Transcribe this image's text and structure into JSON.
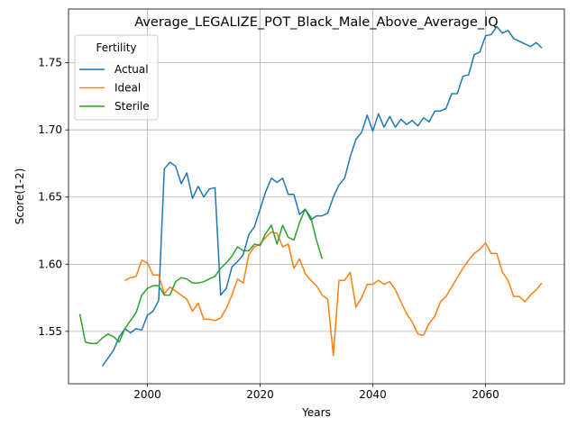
{
  "chart_data": {
    "type": "line",
    "title": "Average_LEGALIZE_POT_Black_Male_Above_Average_IQ",
    "xlabel": "Years",
    "ylabel": "Score(1-2)",
    "xlim": [
      1986,
      2074
    ],
    "ylim": [
      1.511,
      1.79
    ],
    "xticks": [
      2000,
      2020,
      2040,
      2060
    ],
    "yticks": [
      1.55,
      1.6,
      1.65,
      1.7,
      1.75
    ],
    "ytick_labels": [
      "1.55",
      "1.60",
      "1.65",
      "1.70",
      "1.75"
    ],
    "grid": true,
    "legend": {
      "title": "Fertility",
      "position": "top-left"
    },
    "series": [
      {
        "name": "Actual",
        "color": "#1f77b4",
        "x": [
          1992,
          1993,
          1994,
          1995,
          1996,
          1997,
          1998,
          1999,
          2000,
          2001,
          2002,
          2003,
          2004,
          2005,
          2006,
          2007,
          2008,
          2009,
          2010,
          2011,
          2012,
          2013,
          2014,
          2015,
          2016,
          2017,
          2018,
          2019,
          2020,
          2021,
          2022,
          2023,
          2024,
          2025,
          2026,
          2027,
          2028,
          2029,
          2030,
          2031,
          2032,
          2033,
          2034,
          2035,
          2036,
          2037,
          2038,
          2039,
          2040,
          2041,
          2042,
          2043,
          2044,
          2045,
          2046,
          2047,
          2048,
          2049,
          2050,
          2051,
          2052,
          2053,
          2054,
          2055,
          2056,
          2057,
          2058,
          2059,
          2060,
          2061,
          2062,
          2063,
          2064,
          2065,
          2066,
          2067,
          2068,
          2069,
          2070
        ],
        "y": [
          1.524,
          1.53,
          1.536,
          1.546,
          1.552,
          1.549,
          1.552,
          1.551,
          1.562,
          1.565,
          1.573,
          1.671,
          1.676,
          1.673,
          1.66,
          1.668,
          1.649,
          1.658,
          1.65,
          1.656,
          1.657,
          1.577,
          1.582,
          1.598,
          1.602,
          1.607,
          1.622,
          1.628,
          1.641,
          1.654,
          1.664,
          1.661,
          1.664,
          1.652,
          1.652,
          1.637,
          1.641,
          1.633,
          1.636,
          1.636,
          1.638,
          1.65,
          1.659,
          1.664,
          1.68,
          1.693,
          1.698,
          1.711,
          1.699,
          1.712,
          1.702,
          1.71,
          1.702,
          1.708,
          1.704,
          1.707,
          1.703,
          1.709,
          1.706,
          1.714,
          1.714,
          1.716,
          1.727,
          1.727,
          1.74,
          1.741,
          1.756,
          1.758,
          1.77,
          1.771,
          1.777,
          1.772,
          1.774,
          1.768,
          1.766,
          1.764,
          1.762,
          1.765,
          1.761
        ]
      },
      {
        "name": "Ideal",
        "color": "#ff7f0e",
        "x": [
          1996,
          1997,
          1998,
          1999,
          2000,
          2001,
          2002,
          2003,
          2004,
          2005,
          2006,
          2007,
          2008,
          2009,
          2010,
          2011,
          2012,
          2013,
          2014,
          2015,
          2016,
          2017,
          2018,
          2019,
          2020,
          2021,
          2022,
          2023,
          2024,
          2025,
          2026,
          2027,
          2028,
          2029,
          2030,
          2031,
          2032,
          2033,
          2034,
          2035,
          2036,
          2037,
          2038,
          2039,
          2040,
          2041,
          2042,
          2043,
          2044,
          2045,
          2046,
          2047,
          2048,
          2049,
          2050,
          2051,
          2052,
          2053,
          2054,
          2055,
          2056,
          2057,
          2058,
          2059,
          2060,
          2061,
          2062,
          2063,
          2064,
          2065,
          2066,
          2067,
          2068,
          2069,
          2070
        ],
        "y": [
          1.588,
          1.59,
          1.591,
          1.603,
          1.601,
          1.592,
          1.592,
          1.578,
          1.583,
          1.58,
          1.577,
          1.574,
          1.565,
          1.571,
          1.559,
          1.559,
          1.558,
          1.56,
          1.567,
          1.577,
          1.589,
          1.586,
          1.607,
          1.613,
          1.615,
          1.62,
          1.624,
          1.623,
          1.613,
          1.615,
          1.597,
          1.604,
          1.593,
          1.588,
          1.584,
          1.577,
          1.574,
          1.532,
          1.588,
          1.588,
          1.594,
          1.568,
          1.575,
          1.585,
          1.585,
          1.588,
          1.585,
          1.587,
          1.581,
          1.572,
          1.563,
          1.557,
          1.548,
          1.547,
          1.556,
          1.561,
          1.572,
          1.576,
          1.583,
          1.59,
          1.597,
          1.603,
          1.608,
          1.611,
          1.616,
          1.608,
          1.608,
          1.594,
          1.588,
          1.576,
          1.576,
          1.572,
          1.577,
          1.581,
          1.586
        ]
      },
      {
        "name": "Sterile",
        "color": "#2ca02c",
        "x": [
          1988,
          1989,
          1990,
          1991,
          1992,
          1993,
          1994,
          1995,
          1996,
          1997,
          1998,
          1999,
          2000,
          2001,
          2002,
          2003,
          2004,
          2005,
          2006,
          2007,
          2008,
          2009,
          2010,
          2011,
          2012,
          2013,
          2014,
          2015,
          2016,
          2017,
          2018,
          2019,
          2020,
          2021,
          2022,
          2023,
          2024,
          2025,
          2026,
          2027,
          2028,
          2029,
          2030,
          2031
        ],
        "y": [
          1.563,
          1.542,
          1.541,
          1.541,
          1.545,
          1.548,
          1.546,
          1.542,
          1.552,
          1.558,
          1.564,
          1.577,
          1.582,
          1.584,
          1.584,
          1.577,
          1.577,
          1.587,
          1.59,
          1.589,
          1.586,
          1.586,
          1.587,
          1.589,
          1.591,
          1.597,
          1.601,
          1.606,
          1.613,
          1.61,
          1.61,
          1.615,
          1.614,
          1.623,
          1.629,
          1.615,
          1.629,
          1.62,
          1.618,
          1.631,
          1.641,
          1.635,
          1.618,
          1.604
        ]
      }
    ]
  }
}
